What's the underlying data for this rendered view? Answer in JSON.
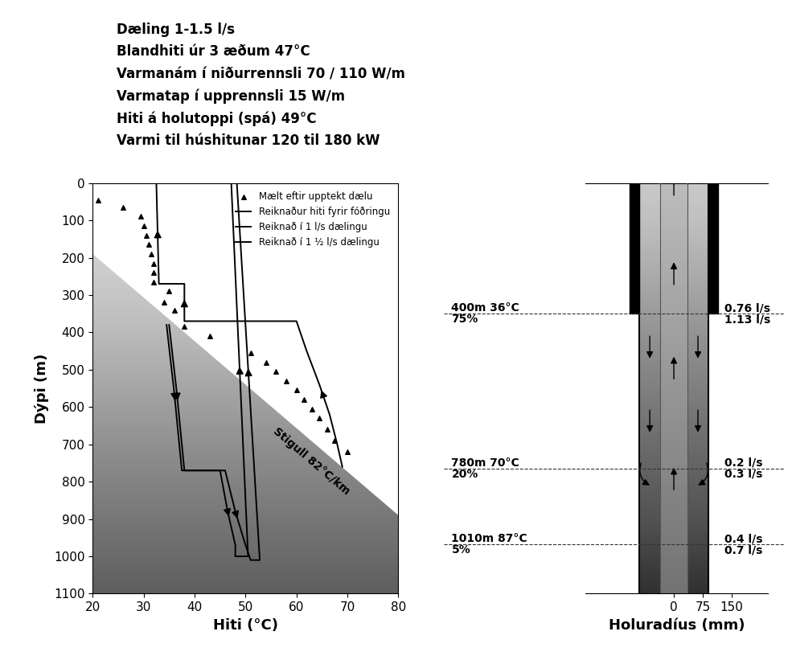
{
  "header": {
    "lines": [
      "Dæling 1-1.5 l/s",
      "Blandhiti úr 3 æðum 47°C",
      "Varmanám í niðurrennsli 70 / 110 W/m",
      "Varmatap í upprennsli 15 W/m",
      "Hiti á holutoppi (spá) 49°C",
      "Varmi til húshitunar 120 til 180 kW"
    ]
  },
  "chart_data": {
    "type": "line",
    "xlabel": "Hiti (°C)",
    "ylabel": "Dýpi (m)",
    "xlim": [
      20,
      80
    ],
    "xticks": [
      20,
      30,
      40,
      50,
      60,
      70,
      80
    ],
    "ylim": [
      1100,
      0
    ],
    "yticks": [
      0,
      100,
      200,
      300,
      400,
      500,
      600,
      700,
      800,
      900,
      1000,
      1100
    ],
    "legend": "upper right",
    "series": [
      {
        "name": "Mælt eftir upptekt dælu",
        "type": "scatter",
        "marker": "triangle",
        "color": "#000000",
        "x": [
          21,
          26,
          29.5,
          30,
          30.5,
          31,
          31.5,
          32,
          32,
          32,
          35,
          34,
          36,
          38,
          43,
          51,
          54,
          56,
          58,
          60,
          61.5,
          63,
          64.5,
          66,
          67.5,
          70
        ],
        "y": [
          45,
          65,
          90,
          115,
          140,
          165,
          190,
          215,
          240,
          265,
          290,
          320,
          340,
          385,
          410,
          455,
          480,
          505,
          530,
          555,
          580,
          605,
          630,
          660,
          690,
          720
        ]
      },
      {
        "name": "Reiknaður hiti fyrir fóðringu",
        "type": "line",
        "line_style": "solid",
        "color": "#000000",
        "x": [
          69,
          68,
          66.5,
          64.5,
          62,
          60,
          38,
          38,
          33,
          32.5
        ],
        "y": [
          760,
          700,
          620,
          540,
          450,
          370,
          370,
          270,
          270,
          0
        ]
      },
      {
        "name": "Reiknað í 1 l/s dælingu",
        "type": "line",
        "line_style": "solid",
        "color": "#000000",
        "x": [
          35,
          36.5,
          37.5,
          38,
          45,
          46.5,
          48,
          48,
          50.5,
          47.2
        ],
        "y": [
          380,
          560,
          700,
          770,
          770,
          880,
          970,
          1000,
          1000,
          0
        ]
      },
      {
        "name": "Reiknað í 1 ½ l/s dælingu",
        "type": "line",
        "line_style": "solid",
        "color": "#000000",
        "x": [
          34.5,
          36,
          37,
          37.5,
          46,
          48,
          50,
          51,
          52.8,
          48.3
        ],
        "y": [
          380,
          560,
          700,
          770,
          770,
          880,
          970,
          1010,
          1010,
          0
        ]
      }
    ],
    "gradient": {
      "text": "Stigull 82°C/km",
      "x": [
        20,
        80
      ],
      "y": [
        190,
        890
      ],
      "label_x": 63,
      "label_y": 745
    }
  },
  "inflows": [
    {
      "depth": 350,
      "label": "400m 36°C",
      "share": "75%",
      "flow_above": "0.76 l/s",
      "flow_below": "1.13 l/s"
    },
    {
      "depth": 765,
      "label": "780m 70°C",
      "share": "20%",
      "flow_above": "0.2 l/s",
      "flow_below": "0.3 l/s"
    },
    {
      "depth": 968,
      "label": "1010m 87°C",
      "share": "5%",
      "flow_above": "0.4 l/s",
      "flow_below": "0.7 l/s"
    }
  ],
  "well_diagram": {
    "xlabel": "Holuradíus (mm)",
    "xlim": [
      -230,
      245
    ],
    "xticks": [
      0,
      75,
      150
    ],
    "ylim": [
      1100,
      0
    ],
    "tick_labels": "x",
    "hole_radius": 90,
    "pipe_radius": 35,
    "casing_radius": 115,
    "casing_depth": 350
  }
}
